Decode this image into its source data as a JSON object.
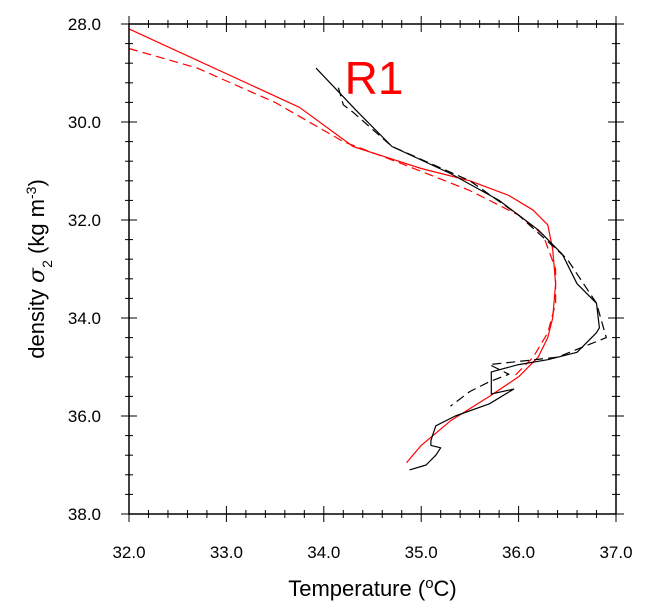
{
  "chart_data": {
    "type": "line",
    "panel_label": "R1",
    "panel_label_color": "#ff0000",
    "xlabel": {
      "main": "Temperature (",
      "sup": "o",
      "tail": "C)"
    },
    "ylabel": {
      "main": "density ",
      "sym": "σ",
      "sub": "2",
      "units": " (kg m",
      "sup": "-3",
      "close": ")"
    },
    "xlim": [
      32.0,
      37.0
    ],
    "ylim": [
      28.0,
      38.0
    ],
    "y_inverted": true,
    "x_ticks": [
      "32.0",
      "33.0",
      "34.0",
      "35.0",
      "36.0",
      "37.0"
    ],
    "y_ticks": [
      "28.0",
      "30.0",
      "32.0",
      "34.0",
      "36.0",
      "38.0"
    ],
    "grid": false,
    "series": [
      {
        "color": "#ff0000",
        "dash": false,
        "x": [
          32.0,
          33.75,
          34.3,
          35.0,
          35.5,
          35.9,
          36.15,
          36.3,
          36.35,
          36.38,
          36.35,
          36.3,
          36.2,
          36.0,
          35.7,
          35.3,
          35.0,
          34.85
        ],
        "y": [
          28.1,
          29.7,
          30.5,
          30.95,
          31.2,
          31.5,
          31.8,
          32.1,
          32.6,
          33.3,
          34.0,
          34.4,
          34.8,
          35.2,
          35.6,
          36.1,
          36.6,
          36.95
        ]
      },
      {
        "color": "#ff0000",
        "dash": true,
        "x": [
          32.0,
          32.7,
          33.5,
          34.2,
          34.8,
          35.5,
          36.0,
          36.25,
          36.38,
          36.38,
          36.3,
          36.15,
          35.95
        ],
        "y": [
          28.5,
          28.9,
          29.6,
          30.4,
          30.85,
          31.4,
          31.9,
          32.3,
          33.0,
          33.7,
          34.3,
          34.8,
          35.2
        ]
      },
      {
        "color": "#000000",
        "dash": false,
        "x": [
          33.92,
          34.35,
          34.7,
          35.3,
          35.8,
          36.2,
          36.45,
          36.6,
          36.8,
          36.83,
          36.8,
          36.6,
          36.3,
          36.0,
          35.72,
          35.72,
          35.95,
          35.7,
          35.35,
          35.15,
          35.1,
          35.1,
          35.2,
          35.15,
          35.05,
          34.88
        ],
        "y": [
          28.9,
          29.8,
          30.5,
          31.05,
          31.6,
          32.2,
          32.7,
          33.3,
          33.7,
          34.2,
          34.3,
          34.7,
          34.85,
          34.95,
          35.1,
          35.55,
          35.45,
          35.75,
          36.0,
          36.2,
          36.5,
          36.6,
          36.65,
          36.8,
          37.0,
          37.1
        ]
      },
      {
        "color": "#000000",
        "dash": true,
        "x": [
          34.15,
          34.2,
          34.3,
          34.7,
          35.5,
          36.0,
          36.5,
          36.8,
          36.9,
          36.4,
          35.7,
          35.9,
          35.7,
          35.5,
          35.3
        ],
        "y": [
          29.3,
          29.65,
          29.8,
          30.5,
          31.2,
          31.9,
          32.8,
          33.7,
          34.4,
          34.8,
          34.95,
          35.15,
          35.3,
          35.5,
          35.8
        ]
      }
    ]
  }
}
